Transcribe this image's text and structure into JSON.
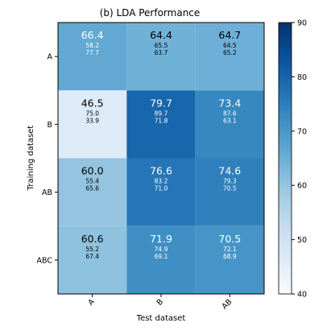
{
  "chart_data": {
    "type": "heatmap",
    "title": "(b) LDA Performance",
    "xlabel": "Test dataset",
    "ylabel": "Training dataset",
    "x_categories": [
      "A",
      "B",
      "AB"
    ],
    "y_categories": [
      "A",
      "B",
      "AB",
      "ABC"
    ],
    "values": [
      [
        66.4,
        64.4,
        64.7
      ],
      [
        46.5,
        79.7,
        73.4
      ],
      [
        60.0,
        76.6,
        74.6
      ],
      [
        60.6,
        71.9,
        70.5
      ]
    ],
    "labels": [
      [
        [
          "66.4",
          "58.2",
          "77.7"
        ],
        [
          "64.4",
          "65.5",
          "63.7"
        ],
        [
          "64.7",
          "64.5",
          "65.2"
        ]
      ],
      [
        [
          "46.5",
          "75.0",
          "33.9"
        ],
        [
          "79.7",
          "89.7",
          "71.8"
        ],
        [
          "73.4",
          "87.6",
          "63.1"
        ]
      ],
      [
        [
          "60.0",
          "55.4",
          "65.6"
        ],
        [
          "76.6",
          "83.2",
          "71.0"
        ],
        [
          "74.6",
          "79.3",
          "70.5"
        ]
      ],
      [
        [
          "60.6",
          "55.2",
          "67.4"
        ],
        [
          "71.9",
          "74.9",
          "69.1"
        ],
        [
          "70.5",
          "72.1",
          "68.9"
        ]
      ]
    ],
    "colorbar": {
      "min": 40,
      "max": 90,
      "ticks": [
        "40",
        "50",
        "60",
        "70",
        "80",
        "90"
      ],
      "colormap": "Blues"
    },
    "grid": false
  }
}
